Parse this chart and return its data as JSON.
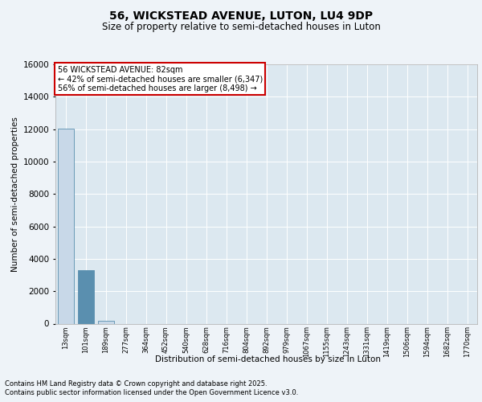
{
  "title1": "56, WICKSTEAD AVENUE, LUTON, LU4 9DP",
  "title2": "Size of property relative to semi-detached houses in Luton",
  "xlabel": "Distribution of semi-detached houses by size in Luton",
  "ylabel": "Number of semi-detached properties",
  "categories": [
    "13sqm",
    "101sqm",
    "189sqm",
    "277sqm",
    "364sqm",
    "452sqm",
    "540sqm",
    "628sqm",
    "716sqm",
    "804sqm",
    "892sqm",
    "979sqm",
    "1067sqm",
    "1155sqm",
    "1243sqm",
    "1331sqm",
    "1419sqm",
    "1506sqm",
    "1594sqm",
    "1682sqm",
    "1770sqm"
  ],
  "values": [
    12050,
    3300,
    175,
    0,
    0,
    0,
    0,
    0,
    0,
    0,
    0,
    0,
    0,
    0,
    0,
    0,
    0,
    0,
    0,
    0,
    0
  ],
  "bar_colors": [
    "#c8d8e8",
    "#c8d8e8",
    "#c8d8e8",
    "#c8d8e8",
    "#c8d8e8",
    "#c8d8e8",
    "#c8d8e8",
    "#c8d8e8",
    "#c8d8e8",
    "#c8d8e8",
    "#c8d8e8",
    "#c8d8e8",
    "#c8d8e8",
    "#c8d8e8",
    "#c8d8e8",
    "#c8d8e8",
    "#c8d8e8",
    "#c8d8e8",
    "#c8d8e8",
    "#c8d8e8",
    "#c8d8e8"
  ],
  "highlight_bar_index": 1,
  "highlight_bar_color": "#5a8faf",
  "ylim": [
    0,
    16000
  ],
  "yticks": [
    0,
    2000,
    4000,
    6000,
    8000,
    10000,
    12000,
    14000,
    16000
  ],
  "annotation_title": "56 WICKSTEAD AVENUE: 82sqm",
  "annotation_line1": "← 42% of semi-detached houses are smaller (6,347)",
  "annotation_line2": "56% of semi-detached houses are larger (8,498) →",
  "footnote1": "Contains HM Land Registry data © Crown copyright and database right 2025.",
  "footnote2": "Contains public sector information licensed under the Open Government Licence v3.0.",
  "background_color": "#eef3f8",
  "plot_bg_color": "#dce8f0",
  "grid_color": "#ffffff",
  "bar_edge_color": "#5a8faf",
  "annotation_box_color": "#ffffff",
  "annotation_box_edge": "#cc0000"
}
